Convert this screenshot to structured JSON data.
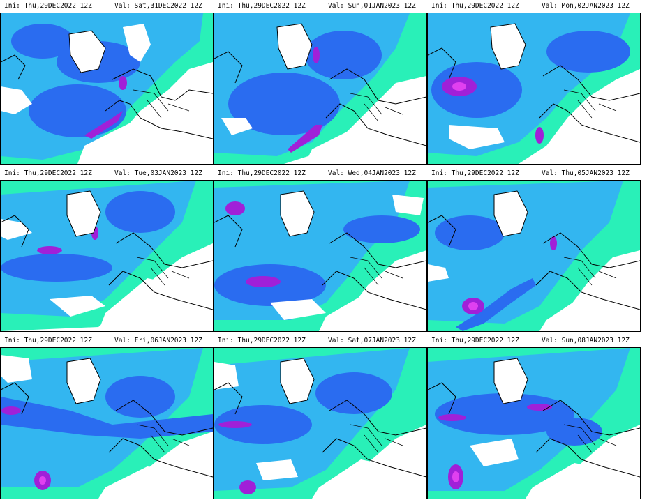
{
  "panels": [
    {
      "ini": "Ini: Thu,29DEC2022  12Z",
      "val": "Val: Sat,31DEC2022  12Z"
    },
    {
      "ini": "Ini: Thu,29DEC2022  12Z",
      "val": "Val: Sun,01JAN2023  12Z"
    },
    {
      "ini": "Ini: Thu,29DEC2022  12Z",
      "val": "Val: Mon,02JAN2023  12Z"
    },
    {
      "ini": "Ini: Thu,29DEC2022  12Z",
      "val": "Val: Tue,03JAN2023  12Z"
    },
    {
      "ini": "Ini: Thu,29DEC2022  12Z",
      "val": "Val: Wed,04JAN2023  12Z"
    },
    {
      "ini": "Ini: Thu,29DEC2022  12Z",
      "val": "Val: Thu,05JAN2023  12Z"
    },
    {
      "ini": "Ini: Thu,29DEC2022  12Z",
      "val": "Val: Fri,06JAN2023  12Z"
    },
    {
      "ini": "Ini: Thu,29DEC2022  12Z",
      "val": "Val: Sat,07JAN2023  12Z"
    },
    {
      "ini": "Ini: Thu,29DEC2022  12Z",
      "val": "Val: Sun,08JAN2023  12Z"
    }
  ],
  "colors": {
    "background_land": "#ffffff",
    "low": "#29f0b8",
    "mid": "#33b6f0",
    "high": "#2a6cf0",
    "very_high": "#3a2fe0",
    "extreme": "#a020d8",
    "peak": "#e040f0",
    "coastline": "#000000",
    "frame": "#000000"
  }
}
